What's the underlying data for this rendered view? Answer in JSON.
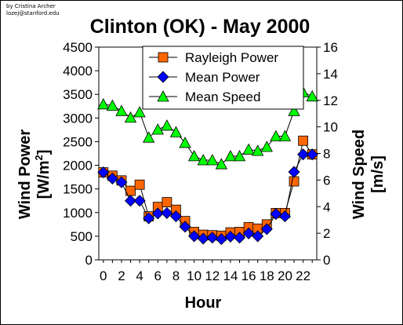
{
  "credit": {
    "line1": "by Cristina Archer",
    "line2": "lozej@stanford.edu"
  },
  "chart_data": {
    "type": "line",
    "title": "Clinton (OK) - May 2000",
    "xlabel": "Hour",
    "ylabel_left": "Wind Power [W/m2]",
    "ylabel_left_main": "Wind Power",
    "ylabel_left_unit_pre": "[W/m",
    "ylabel_left_unit_sup": "2",
    "ylabel_left_unit_post": "]",
    "ylabel_right": "Wind Speed [m/s]",
    "ylabel_right_main": "Wind Speed",
    "ylabel_right_unit": "[m/s]",
    "x": [
      0,
      1,
      2,
      3,
      4,
      5,
      6,
      7,
      8,
      9,
      10,
      11,
      12,
      13,
      14,
      15,
      16,
      17,
      18,
      19,
      20,
      21,
      22,
      23
    ],
    "xticks": [
      "0",
      "2",
      "4",
      "6",
      "8",
      "10",
      "12",
      "14",
      "16",
      "18",
      "20",
      "22"
    ],
    "xlim": [
      -0.5,
      23.5
    ],
    "ylim_left": [
      0,
      4500
    ],
    "ylim_right": [
      0,
      16
    ],
    "yticks_left": [
      "0",
      "500",
      "1000",
      "1500",
      "2000",
      "2500",
      "3000",
      "3500",
      "4000",
      "4500"
    ],
    "yticks_right": [
      "0",
      "2",
      "4",
      "6",
      "8",
      "10",
      "12",
      "14",
      "16"
    ],
    "grid": false,
    "legend_position": "top-right",
    "series": [
      {
        "name": "Rayleigh Power",
        "axis": "left",
        "marker": "square",
        "color": "#FF6600",
        "values": [
          1850,
          1780,
          1680,
          1460,
          1590,
          920,
          1120,
          1220,
          1060,
          820,
          590,
          530,
          520,
          510,
          580,
          590,
          690,
          660,
          750,
          990,
          990,
          1660,
          2520,
          2230
        ]
      },
      {
        "name": "Mean Power",
        "axis": "left",
        "marker": "diamond",
        "color": "#0000FF",
        "values": [
          1850,
          1720,
          1640,
          1250,
          1250,
          880,
          980,
          990,
          920,
          700,
          500,
          450,
          470,
          440,
          490,
          470,
          560,
          500,
          650,
          970,
          920,
          1860,
          2230,
          2230
        ]
      },
      {
        "name": "Mean Speed",
        "axis": "right",
        "marker": "triangle",
        "color": "#00FF00",
        "values": [
          11.7,
          11.6,
          11.2,
          10.7,
          11.1,
          9.2,
          9.8,
          10.1,
          9.6,
          8.8,
          7.8,
          7.5,
          7.5,
          7.2,
          7.8,
          7.8,
          8.3,
          8.2,
          8.5,
          9.3,
          9.3,
          11.2,
          12.6,
          12.3
        ]
      }
    ]
  }
}
